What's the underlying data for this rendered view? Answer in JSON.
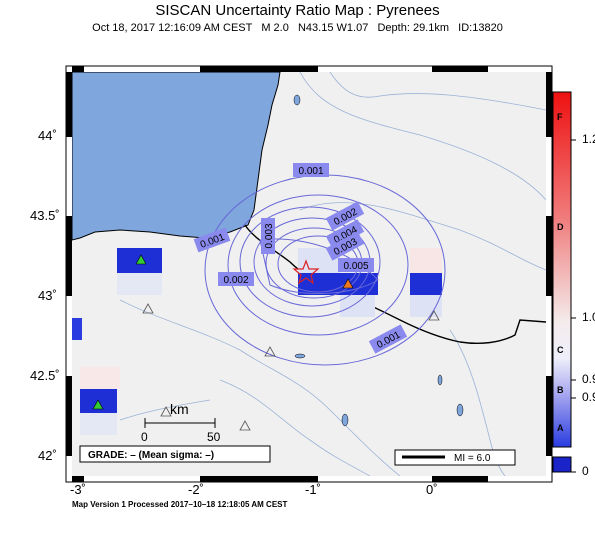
{
  "header": {
    "title": "SISCAN Uncertainty Ratio Map : Pyrenees",
    "subtitle": "Oct 18, 2017 12:16:09 AM CEST   M 2.0   N43.15 W1.07   Depth: 29.1km   ID:13820"
  },
  "axes": {
    "lat_labels": [
      "44˚",
      "43.5˚",
      "43˚",
      "42.5˚",
      "42˚"
    ],
    "lon_labels": [
      "-3˚",
      "-2˚",
      "-1˚",
      "0˚"
    ]
  },
  "contours": {
    "labels": [
      "0.001",
      "0.002",
      "0.003",
      "0.004",
      "0.005",
      "0.002",
      "0.003",
      "0.001",
      "0.001"
    ]
  },
  "scale_bar": {
    "unit": "km",
    "start": "0",
    "end": "50"
  },
  "grade_box": {
    "text": "GRADE: – (Mean sigma: –)"
  },
  "mi_legend": {
    "text": "MI = 6.0"
  },
  "colorbar": {
    "letters": [
      "F",
      "D",
      "C",
      "B",
      "A"
    ],
    "values": [
      "1.2",
      "1.0",
      "0.9",
      "0.9",
      "0"
    ]
  },
  "footer": {
    "text": "Map Version 1 Processed 2017–10–18 12:18:05 AM CEST"
  },
  "colors": {
    "ocean": "#7fa6dd",
    "land": "#f0f0f0",
    "contour": "#6868d8",
    "epicenter": "#dd2222"
  }
}
